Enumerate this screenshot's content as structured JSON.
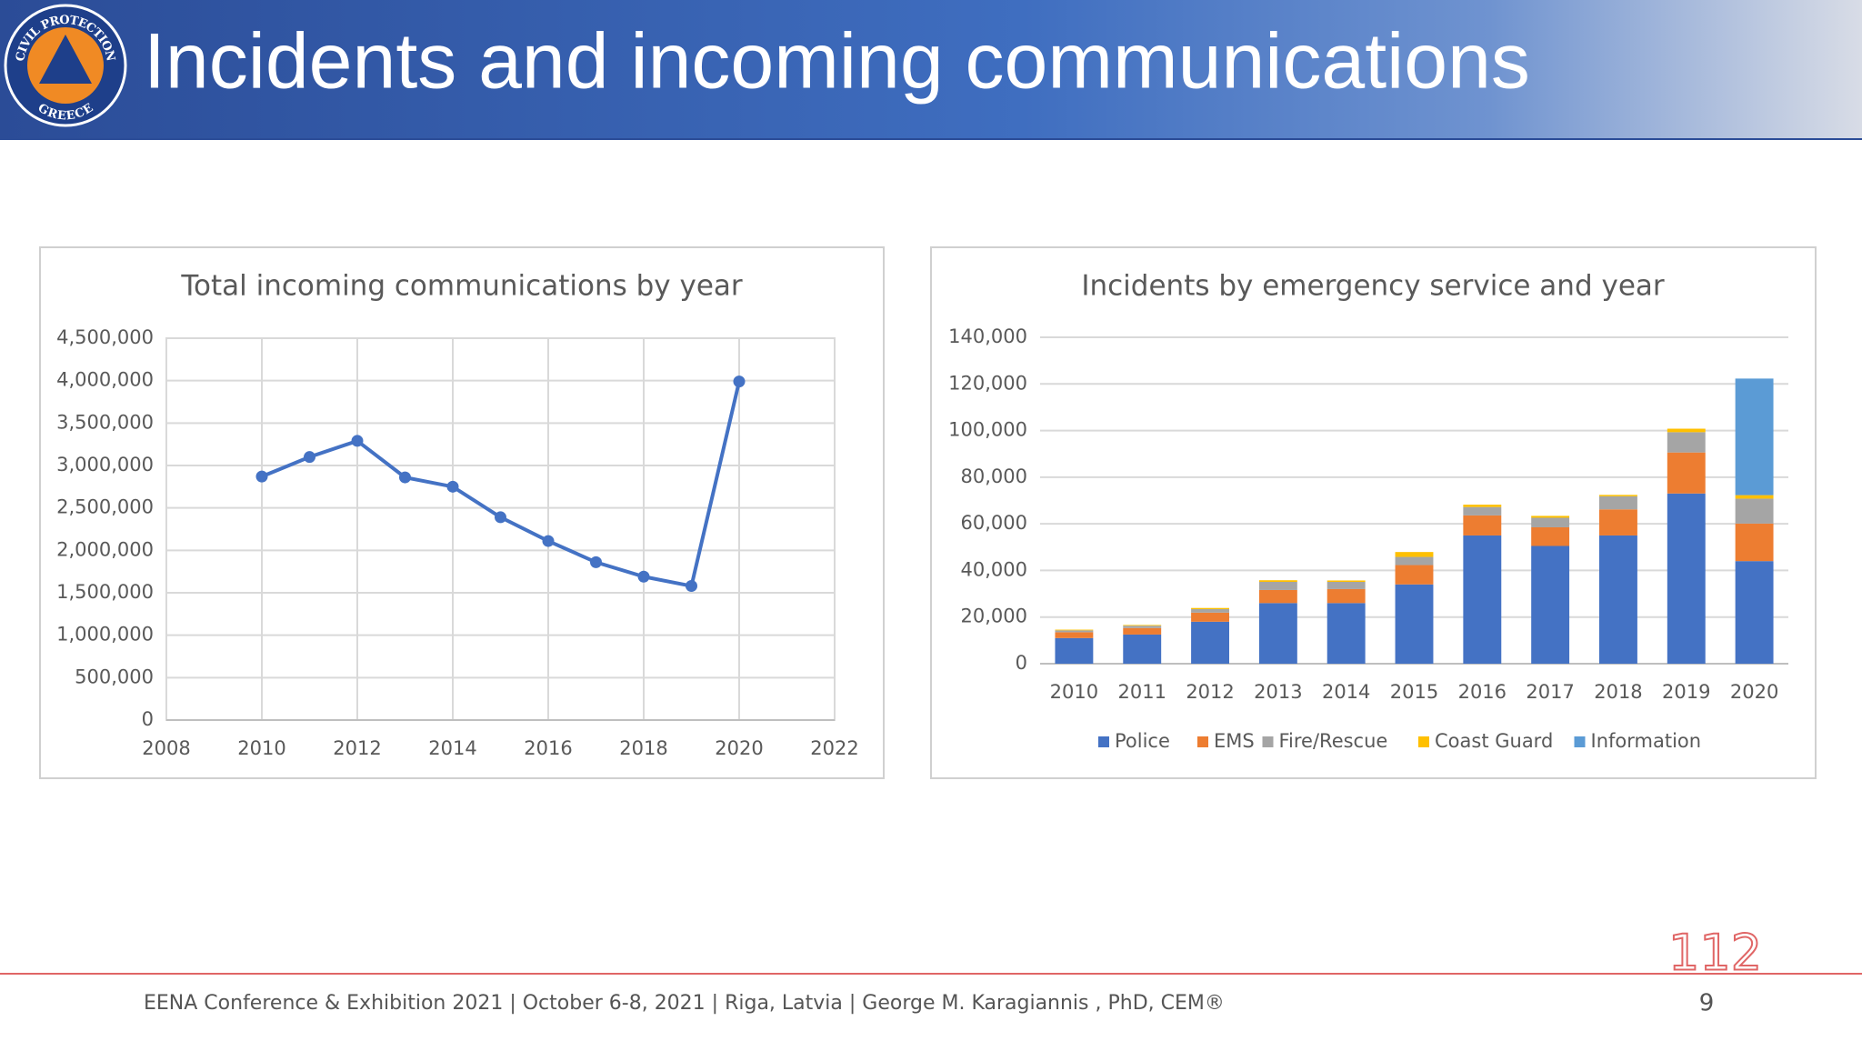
{
  "slide": {
    "title": "Incidents and incoming communications",
    "logo_top": "CIVIL PROTECTION",
    "logo_bottom": "GREECE",
    "logo_112": "112",
    "footer": "EENA Conference & Exhibition 2021 | October 6-8, 2021 | Riga, Latvia | George M. Karagiannis , PhD, CEM®",
    "page_number": "9"
  },
  "chart_data": [
    {
      "type": "line",
      "title": "Total incoming communications by year",
      "x": [
        2010,
        2011,
        2012,
        2013,
        2014,
        2015,
        2016,
        2017,
        2018,
        2019,
        2020
      ],
      "values": [
        2870000,
        3100000,
        3290000,
        2860000,
        2750000,
        2390000,
        2110000,
        1860000,
        1690000,
        1580000,
        3990000
      ],
      "color": "#4472c4",
      "xlim": [
        2008,
        2022
      ],
      "xticks": [
        2008,
        2010,
        2012,
        2014,
        2016,
        2018,
        2020,
        2022
      ],
      "ylim": [
        0,
        4500000
      ],
      "yticks": [
        0,
        {
          "value": 500000,
          "label": "500,000"
        },
        {
          "value": 1000000,
          "label": "1,000,000"
        },
        {
          "value": 1500000,
          "label": "1,500,000"
        },
        {
          "value": 2000000,
          "label": "2,000,000"
        },
        {
          "value": 2500000,
          "label": "2,500,000"
        },
        {
          "value": 3000000,
          "label": "3,000,000"
        },
        {
          "value": 3500000,
          "label": "3,500,000"
        },
        {
          "value": 4000000,
          "label": "4,000,000"
        },
        {
          "value": 4500000,
          "label": "4,500,000"
        }
      ],
      "grid": true
    },
    {
      "type": "stacked_bar",
      "title": "Incidents by emergency service and year",
      "categories": [
        "2010",
        "2011",
        "2012",
        "2013",
        "2014",
        "2015",
        "2016",
        "2017",
        "2018",
        "2019",
        "2020"
      ],
      "series": [
        {
          "name": "Police",
          "color": "#4472c4",
          "values": [
            11000,
            12500,
            18000,
            26000,
            26000,
            34000,
            55000,
            50500,
            55000,
            73000,
            44000
          ]
        },
        {
          "name": "EMS",
          "color": "#ed7d31",
          "values": [
            2500,
            2800,
            3900,
            5600,
            6000,
            8300,
            8600,
            8000,
            11200,
            17600,
            16100
          ]
        },
        {
          "name": "Fire/Rescue",
          "color": "#a5a5a5",
          "values": [
            800,
            1000,
            1500,
            3500,
            3100,
            3500,
            3600,
            4100,
            5600,
            8700,
            10700
          ]
        },
        {
          "name": "Coast Guard",
          "color": "#ffc000",
          "values": [
            300,
            300,
            500,
            700,
            600,
            2100,
            1000,
            800,
            600,
            1500,
            1500
          ]
        },
        {
          "name": "Information",
          "color": "#5b9bd5",
          "values": [
            0,
            0,
            0,
            0,
            0,
            0,
            0,
            0,
            0,
            0,
            50000
          ]
        }
      ],
      "ylim": [
        0,
        140000
      ],
      "yticks": [
        0,
        {
          "value": 20000,
          "label": "20,000"
        },
        {
          "value": 40000,
          "label": "40,000"
        },
        {
          "value": 60000,
          "label": "60,000"
        },
        {
          "value": 80000,
          "label": "80,000"
        },
        {
          "value": 100000,
          "label": "100,000"
        },
        {
          "value": 120000,
          "label": "120,000"
        },
        {
          "value": 140000,
          "label": "140,000"
        }
      ],
      "grid": true,
      "legend": "bottom"
    }
  ]
}
